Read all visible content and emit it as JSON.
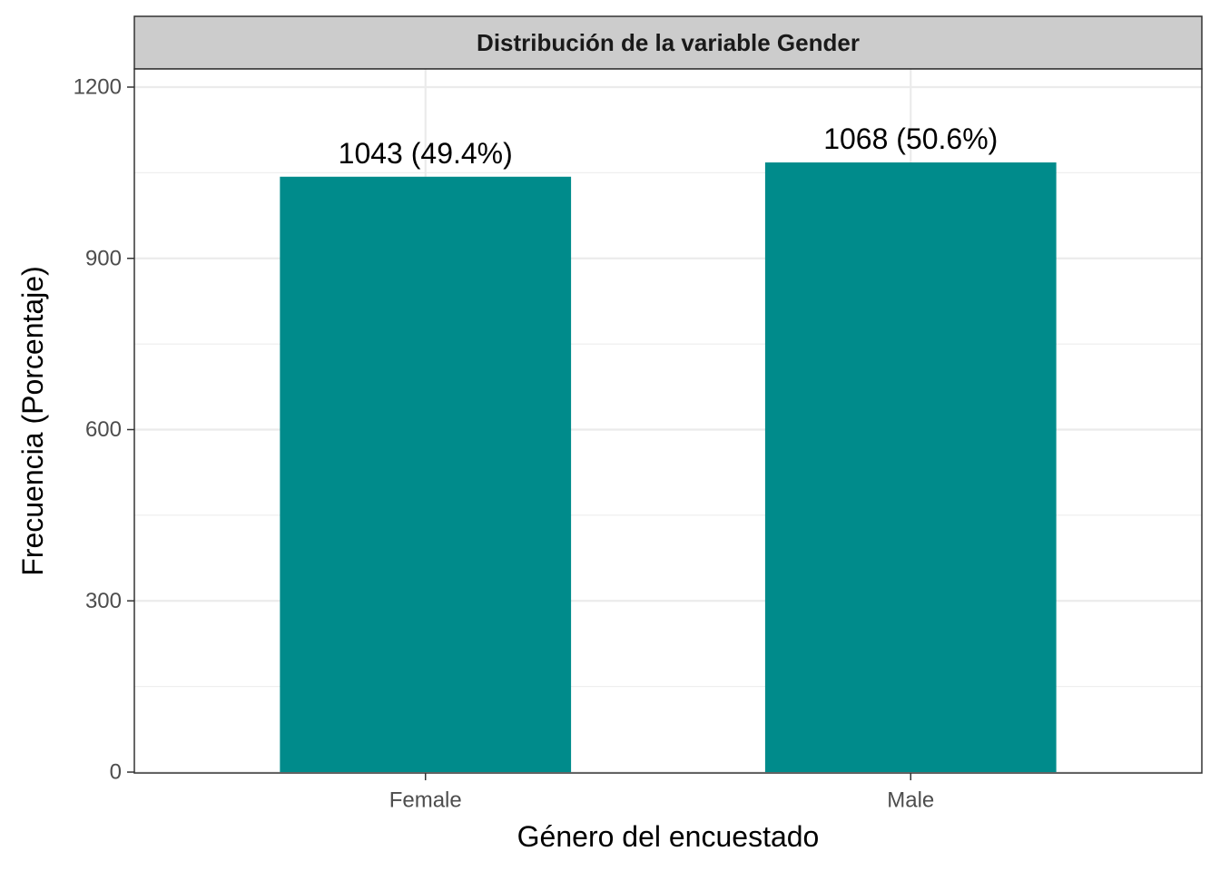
{
  "chart_data": {
    "type": "bar",
    "title": "Distribución de la variable Gender",
    "xlabel": "Género del encuestado",
    "ylabel": "Frecuencia (Porcentaje)",
    "categories": [
      "Female",
      "Male"
    ],
    "values": [
      1043,
      1068
    ],
    "labels": [
      "1043 (49.4%)",
      "1068 (50.6%)"
    ],
    "ylim": [
      0,
      1200
    ],
    "yticks": [
      0,
      300,
      600,
      900,
      1200
    ],
    "ytick_labels": [
      "0",
      "300",
      "600",
      "900",
      "1200"
    ],
    "grid": true,
    "bar_color": "#008b8b",
    "strip_color": "#cccccc"
  }
}
